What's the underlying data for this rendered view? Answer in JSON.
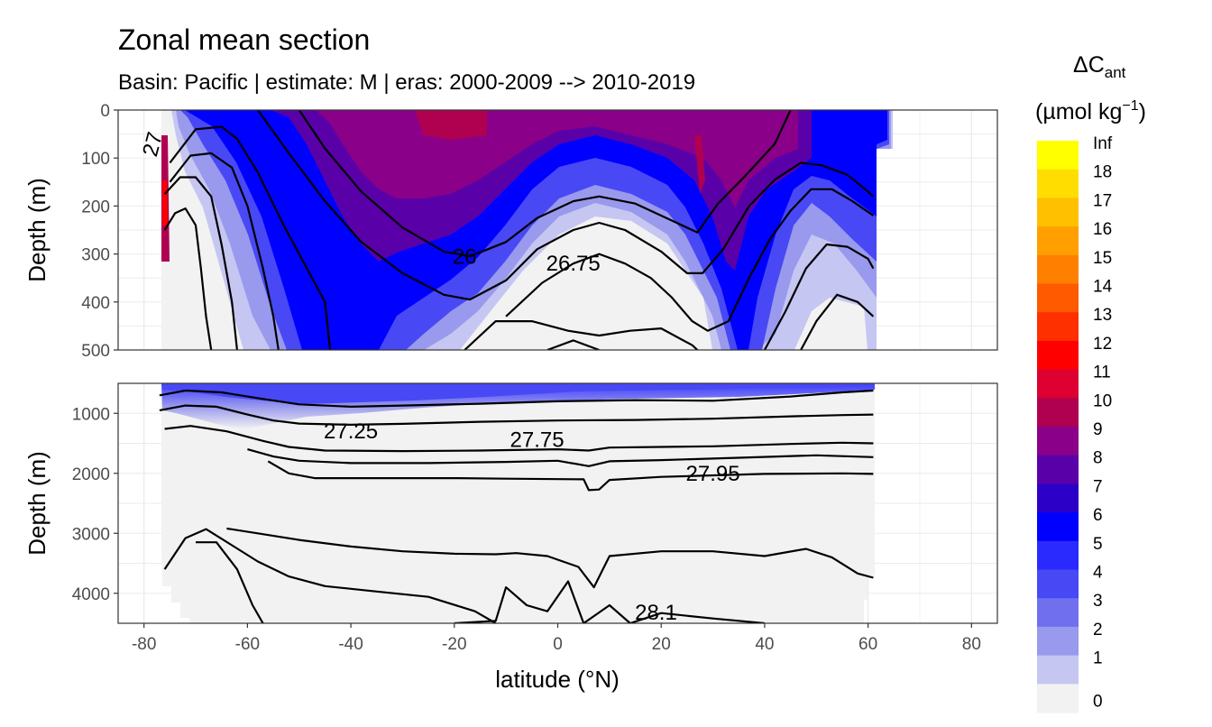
{
  "title": "Zonal mean section",
  "subtitle": "Basin: Pacific | estimate: M  | eras: 2000-2009 --> 2010-2019",
  "axes": {
    "xlabel": "latitude (°N)",
    "ylabel_top": "Depth (m)",
    "ylabel_bottom": "Depth (m)"
  },
  "legend": {
    "title_symbol": "ΔC",
    "title_subscript": "ant",
    "units_prefix": "(µmol kg",
    "units_sup": "−1",
    "units_suffix": ")",
    "levels": [
      "Inf",
      "18",
      "17",
      "16",
      "15",
      "14",
      "13",
      "12",
      "11",
      "10",
      "9",
      "8",
      "7",
      "6",
      "5",
      "4",
      "3",
      "2",
      "1",
      "0"
    ],
    "colors": [
      "#ffff00",
      "#ffdd00",
      "#ffc000",
      "#ffa000",
      "#ff8000",
      "#ff5a00",
      "#ff3000",
      "#ff0000",
      "#dd0030",
      "#b00050",
      "#8a0088",
      "#5a00a8",
      "#2d00c8",
      "#0000ff",
      "#2a2aff",
      "#4848f5",
      "#7070ee",
      "#9999ee",
      "#c6c6f2",
      "#f2f2f2"
    ]
  },
  "chart_data": {
    "type": "contour",
    "x": {
      "range": [
        -85,
        85
      ],
      "ticks": [
        "-80",
        "-60",
        "-40",
        "-20",
        "0",
        "20",
        "40",
        "60",
        "80"
      ],
      "tick_values": [
        -80,
        -60,
        -40,
        -20,
        0,
        20,
        40,
        60,
        80
      ]
    },
    "panels": [
      {
        "name": "upper",
        "ylim": [
          500,
          0
        ],
        "ticks": [
          "0",
          "100",
          "200",
          "300",
          "400",
          "500"
        ],
        "tick_values": [
          0,
          100,
          200,
          300,
          400,
          500
        ]
      },
      {
        "name": "lower",
        "ylim": [
          4500,
          500
        ],
        "ticks": [
          "1000",
          "2000",
          "3000",
          "4000"
        ],
        "tick_values": [
          1000,
          2000,
          3000,
          4000
        ]
      }
    ],
    "contour_labels": [
      {
        "panel": "upper",
        "text": "26",
        "x": -18,
        "y": 305
      },
      {
        "panel": "upper",
        "text": "26.75",
        "x": 3,
        "y": 320
      },
      {
        "panel": "upper",
        "text": "27",
        "x": -77,
        "y": 60
      },
      {
        "panel": "lower",
        "text": "27.25",
        "x": -40,
        "y": 1300
      },
      {
        "panel": "lower",
        "text": "27.75",
        "x": -4,
        "y": 1440
      },
      {
        "panel": "lower",
        "text": "27.95",
        "x": 30,
        "y": 2000
      },
      {
        "panel": "lower",
        "text": "28.1",
        "x": 19,
        "y": 4320
      }
    ],
    "density_contours_upper": [
      {
        "level": "26",
        "points": [
          [
            -50,
            0
          ],
          [
            -45,
            80
          ],
          [
            -38,
            170
          ],
          [
            -30,
            245
          ],
          [
            -22,
            295
          ],
          [
            -17,
            305
          ],
          [
            -10,
            275
          ],
          [
            -4,
            225
          ],
          [
            3,
            190
          ],
          [
            8,
            180
          ],
          [
            15,
            195
          ],
          [
            22,
            230
          ],
          [
            27,
            255
          ],
          [
            31,
            195
          ],
          [
            36,
            140
          ],
          [
            42,
            70
          ],
          [
            45,
            0
          ]
        ]
      },
      {
        "level": "26.25",
        "points": [
          [
            -58,
            0
          ],
          [
            -52,
            90
          ],
          [
            -45,
            190
          ],
          [
            -38,
            275
          ],
          [
            -30,
            340
          ],
          [
            -22,
            385
          ],
          [
            -17,
            395
          ],
          [
            -10,
            355
          ],
          [
            -4,
            290
          ],
          [
            3,
            250
          ],
          [
            8,
            235
          ],
          [
            13,
            250
          ],
          [
            20,
            295
          ],
          [
            25,
            340
          ],
          [
            28,
            340
          ],
          [
            32,
            290
          ],
          [
            37,
            200
          ],
          [
            42,
            145
          ],
          [
            47,
            110
          ],
          [
            51,
            115
          ],
          [
            56,
            135
          ],
          [
            60,
            170
          ],
          [
            61,
            180
          ]
        ]
      },
      {
        "level": "26.75",
        "points": [
          [
            -75,
            110
          ],
          [
            -70,
            40
          ],
          [
            -65,
            35
          ],
          [
            -62,
            60
          ],
          [
            -58,
            130
          ],
          [
            -53,
            240
          ],
          [
            -48,
            340
          ],
          [
            -45,
            400
          ],
          [
            -44,
            500
          ]
        ]
      },
      {
        "level": "26.75b",
        "points": [
          [
            -10,
            430
          ],
          [
            -3,
            360
          ],
          [
            3,
            320
          ],
          [
            8,
            300
          ],
          [
            13,
            320
          ],
          [
            18,
            350
          ],
          [
            22,
            390
          ],
          [
            26,
            440
          ],
          [
            29,
            460
          ],
          [
            33,
            440
          ],
          [
            37,
            350
          ],
          [
            41,
            270
          ],
          [
            45,
            210
          ],
          [
            49,
            165
          ],
          [
            53,
            165
          ],
          [
            57,
            190
          ],
          [
            61,
            220
          ]
        ]
      },
      {
        "level": "27a",
        "points": [
          [
            -75,
            150
          ],
          [
            -71,
            95
          ],
          [
            -67,
            90
          ],
          [
            -63,
            120
          ],
          [
            -60,
            200
          ],
          [
            -57,
            330
          ],
          [
            -55,
            430
          ],
          [
            -54,
            500
          ]
        ]
      },
      {
        "level": "27b",
        "points": [
          [
            -18,
            500
          ],
          [
            -12,
            440
          ],
          [
            -5,
            440
          ],
          [
            2,
            460
          ],
          [
            8,
            470
          ],
          [
            14,
            460
          ],
          [
            20,
            455
          ],
          [
            26,
            490
          ],
          [
            27,
            500
          ]
        ]
      },
      {
        "level": "27c",
        "points": [
          [
            40,
            500
          ],
          [
            44,
            420
          ],
          [
            48,
            330
          ],
          [
            52,
            280
          ],
          [
            56,
            285
          ],
          [
            60,
            310
          ],
          [
            61,
            330
          ]
        ]
      },
      {
        "level": "27.1",
        "points": [
          [
            -76,
            175
          ],
          [
            -73,
            140
          ],
          [
            -70,
            140
          ],
          [
            -67,
            180
          ],
          [
            -65,
            280
          ],
          [
            -63,
            400
          ],
          [
            -62,
            500
          ]
        ]
      },
      {
        "level": "27.2",
        "points": [
          [
            -2,
            500
          ],
          [
            3,
            480
          ],
          [
            8,
            500
          ]
        ]
      },
      {
        "level": "27.2b",
        "points": [
          [
            47,
            500
          ],
          [
            50,
            440
          ],
          [
            54,
            385
          ],
          [
            58,
            400
          ],
          [
            61,
            430
          ]
        ]
      },
      {
        "level": "27.15",
        "points": [
          [
            -76,
            250
          ],
          [
            -74,
            215
          ],
          [
            -72,
            205
          ],
          [
            -70,
            240
          ],
          [
            -69,
            330
          ],
          [
            -68,
            430
          ],
          [
            -67,
            500
          ]
        ]
      }
    ],
    "density_contours_lower": [
      {
        "level": "27.25",
        "points": [
          [
            -77,
            700
          ],
          [
            -72,
            620
          ],
          [
            -65,
            650
          ],
          [
            -57,
            760
          ],
          [
            -50,
            850
          ],
          [
            -40,
            890
          ],
          [
            -30,
            870
          ],
          [
            -15,
            840
          ],
          [
            0,
            800
          ],
          [
            15,
            780
          ],
          [
            30,
            790
          ],
          [
            45,
            720
          ],
          [
            55,
            650
          ],
          [
            61,
            620
          ]
        ]
      },
      {
        "level": "27.5",
        "points": [
          [
            -77,
            950
          ],
          [
            -72,
            870
          ],
          [
            -66,
            890
          ],
          [
            -60,
            1020
          ],
          [
            -55,
            1120
          ],
          [
            -50,
            1170
          ],
          [
            -40,
            1190
          ],
          [
            -30,
            1175
          ],
          [
            -15,
            1140
          ],
          [
            0,
            1120
          ],
          [
            15,
            1110
          ],
          [
            30,
            1090
          ],
          [
            45,
            1050
          ],
          [
            55,
            1030
          ],
          [
            61,
            1020
          ]
        ]
      },
      {
        "level": "27.75",
        "points": [
          [
            -76,
            1260
          ],
          [
            -71,
            1210
          ],
          [
            -64,
            1300
          ],
          [
            -57,
            1460
          ],
          [
            -52,
            1560
          ],
          [
            -45,
            1620
          ],
          [
            -30,
            1630
          ],
          [
            -15,
            1620
          ],
          [
            0,
            1600
          ],
          [
            6,
            1620
          ],
          [
            10,
            1570
          ],
          [
            20,
            1560
          ],
          [
            30,
            1550
          ],
          [
            45,
            1510
          ],
          [
            55,
            1490
          ],
          [
            61,
            1500
          ]
        ]
      },
      {
        "level": "27.85",
        "points": [
          [
            -60,
            1600
          ],
          [
            -55,
            1720
          ],
          [
            -50,
            1790
          ],
          [
            -40,
            1830
          ],
          [
            -25,
            1830
          ],
          [
            -10,
            1810
          ],
          [
            0,
            1790
          ],
          [
            6,
            1880
          ],
          [
            10,
            1800
          ],
          [
            20,
            1780
          ],
          [
            35,
            1740
          ],
          [
            50,
            1700
          ],
          [
            61,
            1730
          ]
        ]
      },
      {
        "level": "27.95",
        "points": [
          [
            -56,
            1800
          ],
          [
            -52,
            2000
          ],
          [
            -47,
            2080
          ],
          [
            -35,
            2080
          ],
          [
            -20,
            2080
          ],
          [
            -10,
            2090
          ],
          [
            5,
            2100
          ],
          [
            6,
            2280
          ],
          [
            8,
            2270
          ],
          [
            10,
            2110
          ],
          [
            20,
            2060
          ],
          [
            40,
            2010
          ],
          [
            55,
            2000
          ],
          [
            61,
            2010
          ]
        ]
      },
      {
        "level": "28.05",
        "points": [
          [
            -76,
            3600
          ],
          [
            -72,
            3080
          ],
          [
            -68,
            2930
          ],
          [
            -63,
            3200
          ],
          [
            -58,
            3470
          ],
          [
            -52,
            3720
          ],
          [
            -45,
            3880
          ],
          [
            -35,
            3970
          ],
          [
            -25,
            4060
          ],
          [
            -16,
            4300
          ],
          [
            -12,
            4500
          ]
        ]
      },
      {
        "level": "28.0",
        "points": [
          [
            -64,
            2920
          ],
          [
            -58,
            3000
          ],
          [
            -50,
            3110
          ],
          [
            -40,
            3220
          ],
          [
            -30,
            3300
          ],
          [
            -20,
            3340
          ],
          [
            -12,
            3350
          ],
          [
            -8,
            3330
          ],
          [
            -2,
            3380
          ],
          [
            4,
            3560
          ],
          [
            7,
            3900
          ],
          [
            10,
            3380
          ],
          [
            20,
            3300
          ],
          [
            30,
            3300
          ],
          [
            40,
            3380
          ],
          [
            48,
            3260
          ],
          [
            53,
            3400
          ],
          [
            58,
            3670
          ],
          [
            61,
            3740
          ]
        ]
      },
      {
        "level": "28.1",
        "points": [
          [
            -70,
            3150
          ],
          [
            -66,
            3150
          ],
          [
            -62,
            3600
          ],
          [
            -59,
            4200
          ],
          [
            -57,
            4500
          ]
        ]
      },
      {
        "level": "28.1b",
        "points": [
          [
            -20,
            4500
          ],
          [
            -12,
            4460
          ],
          [
            -10,
            3900
          ],
          [
            -6,
            4200
          ],
          [
            -2,
            4300
          ],
          [
            2,
            3800
          ],
          [
            5,
            4500
          ],
          [
            10,
            4200
          ],
          [
            14,
            4500
          ],
          [
            20,
            4330
          ],
          [
            30,
            4420
          ],
          [
            40,
            4500
          ]
        ]
      }
    ]
  }
}
